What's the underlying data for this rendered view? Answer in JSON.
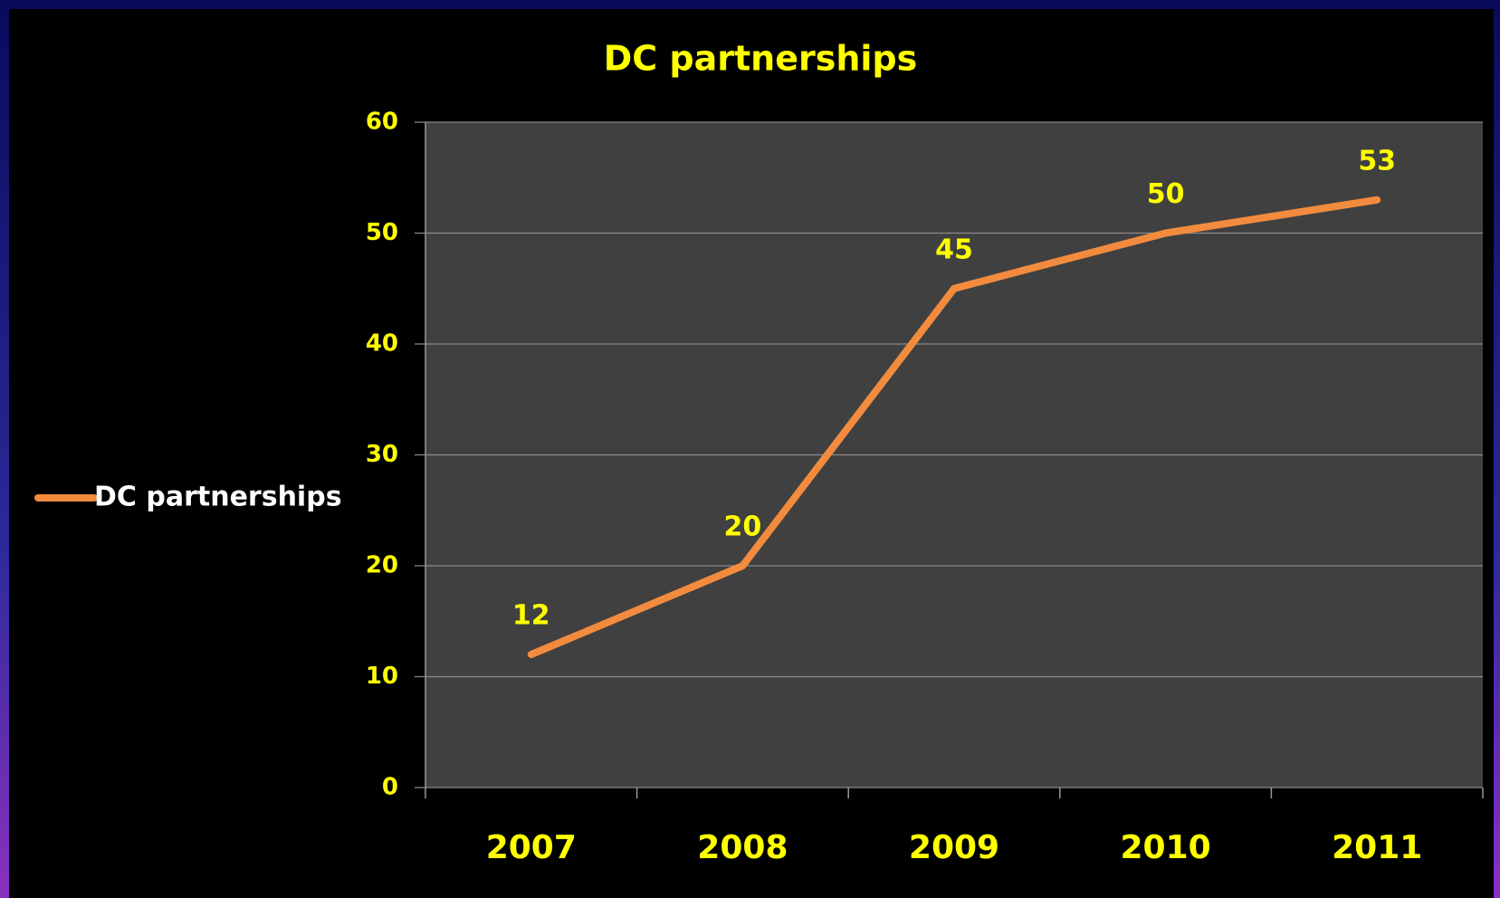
{
  "chart_data": {
    "type": "line",
    "title": "DC partnerships",
    "categories": [
      "2007",
      "2008",
      "2009",
      "2010",
      "2011"
    ],
    "series": [
      {
        "name": "DC partnerships",
        "color": "#f38b3e",
        "values": [
          12,
          20,
          45,
          50,
          53
        ]
      }
    ],
    "ylim": [
      0,
      60
    ],
    "yticks": [
      0,
      10,
      20,
      30,
      40,
      50,
      60
    ],
    "grid": true,
    "legend": "left"
  }
}
